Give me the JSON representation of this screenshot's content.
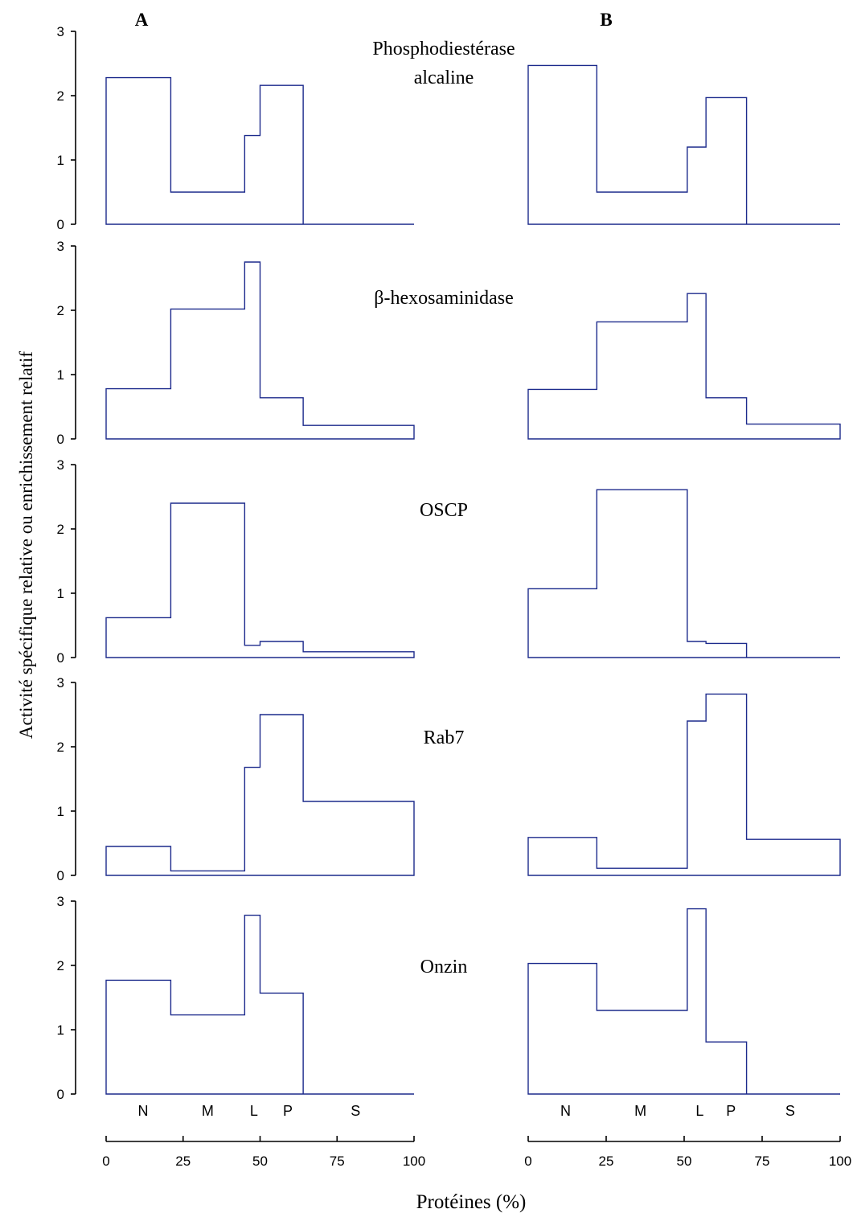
{
  "figure": {
    "column_labels": [
      "A",
      "B"
    ],
    "y_axis_label": "Activité spécifique relative ou enrichissement relatif",
    "x_axis_label": "Protéines (%)",
    "fraction_labels": [
      "N",
      "M",
      "L",
      "P",
      "S"
    ],
    "x_ticks": [
      "0",
      "25",
      "50",
      "75",
      "100"
    ],
    "y_ticks": [
      "0",
      "1",
      "2",
      "3"
    ],
    "panel_titles": [
      [
        "Phosphodiestérase",
        "alcaline"
      ],
      [
        "β-hexosaminidase"
      ],
      [
        "OSCP"
      ],
      [
        "Rab7"
      ],
      [
        "Onzin"
      ]
    ],
    "colors": {
      "histogram": "#1c2a8c",
      "axes": "#000000"
    }
  },
  "chart_data": {
    "type": "histogram",
    "x_unit": "Protéines (%)",
    "y_unit": "Activité spécifique relative ou enrichissement relatif",
    "xlim": [
      0,
      100
    ],
    "ylim": [
      0,
      3
    ],
    "columns": [
      {
        "label": "A",
        "fraction_boundaries": [
          0,
          21,
          45,
          50,
          64,
          100
        ],
        "fraction_label_positions": [
          12,
          33,
          48,
          59,
          81
        ],
        "fraction_labels": [
          "N",
          "M",
          "L",
          "P",
          "S"
        ],
        "panels": [
          {
            "title": "Phosphodiestérase alcaline",
            "values": [
              2.28,
              0.5,
              1.38,
              2.16,
              0.0
            ]
          },
          {
            "title": "β-hexosaminidase",
            "values": [
              0.78,
              2.02,
              2.75,
              0.64,
              0.21
            ]
          },
          {
            "title": "OSCP",
            "values": [
              0.62,
              2.4,
              0.19,
              0.25,
              0.09
            ]
          },
          {
            "title": "Rab7",
            "values": [
              0.45,
              0.07,
              1.68,
              2.5,
              1.15
            ]
          },
          {
            "title": "Onzin",
            "values": [
              1.77,
              1.23,
              2.78,
              1.57,
              0.0
            ]
          }
        ]
      },
      {
        "label": "B",
        "fraction_boundaries": [
          0,
          22,
          51,
          57,
          70,
          100
        ],
        "fraction_labels": [
          "N",
          "M",
          "L",
          "P",
          "S"
        ],
        "fraction_label_positions": [
          12,
          36,
          55,
          65,
          84
        ],
        "panels": [
          {
            "title": "Phosphodiestérase alcaline",
            "values": [
              2.47,
              0.5,
              1.2,
              1.97,
              0.0
            ]
          },
          {
            "title": "β-hexosaminidase",
            "values": [
              0.77,
              1.82,
              2.26,
              0.64,
              0.23
            ]
          },
          {
            "title": "OSCP",
            "values": [
              1.07,
              2.61,
              0.25,
              0.22,
              0.0
            ]
          },
          {
            "title": "Rab7",
            "values": [
              0.59,
              0.11,
              2.4,
              2.82,
              0.56
            ]
          },
          {
            "title": "Onzin",
            "values": [
              2.03,
              1.3,
              2.88,
              0.81,
              0.0
            ]
          }
        ]
      }
    ]
  }
}
